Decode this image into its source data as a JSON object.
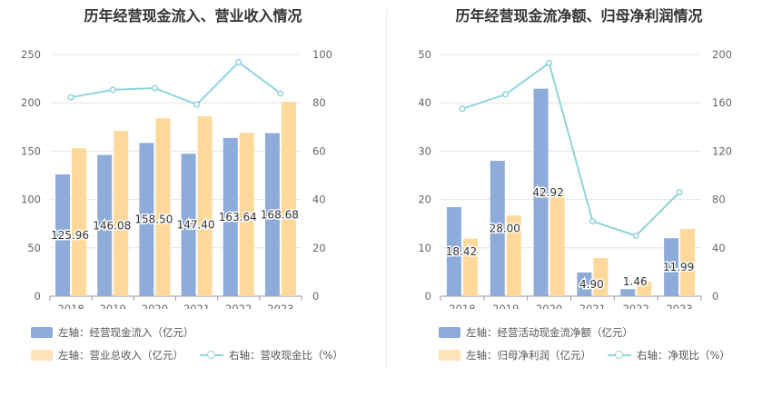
{
  "colors": {
    "bar_left": "#8eacd9",
    "bar_right": "#ffd99c",
    "line": "#8fd3dc"
  },
  "chart_data": [
    {
      "type": "bar",
      "title": "历年经营现金流入、营业收入情况",
      "categories": [
        "2018",
        "2019",
        "2020",
        "2021",
        "2022",
        "2023"
      ],
      "left_axis": {
        "min": 0,
        "max": 250,
        "ticks": [
          "0",
          "50",
          "100",
          "150",
          "200",
          "250"
        ]
      },
      "right_axis": {
        "min": 0,
        "max": 100,
        "ticks": [
          "0",
          "20",
          "40",
          "60",
          "80",
          "100"
        ]
      },
      "series": [
        {
          "name": "左轴：经营现金流入（亿元）",
          "axis": "left",
          "kind": "bar",
          "values": [
            125.96,
            146.08,
            158.5,
            147.4,
            163.64,
            168.68
          ],
          "labels": [
            "125.96",
            "146.08",
            "158.50",
            "147.40",
            "163.64",
            "168.68"
          ]
        },
        {
          "name": "左轴：营业总收入（亿元）",
          "axis": "left",
          "kind": "bar",
          "values": [
            153,
            171,
            184,
            186,
            169,
            201
          ]
        },
        {
          "name": "右轴：营收现金比（%）",
          "axis": "right",
          "kind": "line",
          "values": [
            82.3,
            85.4,
            86.1,
            79.3,
            96.8,
            83.9
          ]
        }
      ],
      "legend_position": "bottom"
    },
    {
      "type": "bar",
      "title": "历年经营现金流净额、归母净利润情况",
      "categories": [
        "2018",
        "2019",
        "2020",
        "2021",
        "2022",
        "2023"
      ],
      "left_axis": {
        "min": 0,
        "max": 50,
        "ticks": [
          "0",
          "10",
          "20",
          "30",
          "40",
          "50"
        ]
      },
      "right_axis": {
        "min": 0,
        "max": 200,
        "ticks": [
          "0",
          "40",
          "80",
          "120",
          "160",
          "200"
        ]
      },
      "series": [
        {
          "name": "左轴：经营活动现金流净额（亿元）",
          "axis": "left",
          "kind": "bar",
          "values": [
            18.42,
            28.0,
            42.92,
            4.9,
            1.46,
            11.99
          ],
          "labels": [
            "18.42",
            "28.00",
            "42.92",
            "4.90",
            "1.46",
            "11.99"
          ]
        },
        {
          "name": "左轴：归母净利润（亿元）",
          "axis": "left",
          "kind": "bar",
          "values": [
            11.9,
            16.7,
            22.1,
            7.9,
            3.0,
            13.9
          ]
        },
        {
          "name": "右轴：净现比（%）",
          "axis": "right",
          "kind": "line",
          "values": [
            155,
            167,
            193,
            62,
            50,
            86
          ]
        }
      ],
      "legend_position": "bottom"
    }
  ]
}
